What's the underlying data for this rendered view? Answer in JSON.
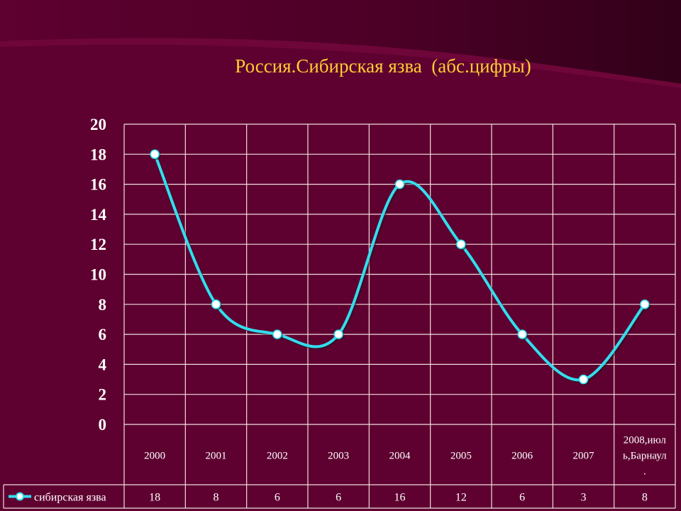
{
  "slide": {
    "title": "Россия.Сибирская язва  (абс.цифры)"
  },
  "colors": {
    "background": "#5e0030",
    "title": "#ffcc33",
    "grid": "#f2dede",
    "line": "#33ddee",
    "marker_fill": "#ffffff",
    "text": "#ffffff"
  },
  "chart_data": {
    "type": "line",
    "title": "",
    "xlabel": "",
    "ylabel": "",
    "categories": [
      "2000",
      "2001",
      "2002",
      "2003",
      "2004",
      "2005",
      "2006",
      "2007",
      "2008,июль,Барнаул"
    ],
    "category_lines": [
      [
        "2000"
      ],
      [
        "2001"
      ],
      [
        "2002"
      ],
      [
        "2003"
      ],
      [
        "2004"
      ],
      [
        "2005"
      ],
      [
        "2006"
      ],
      [
        "2007"
      ],
      [
        "2008,июл",
        "ь,Барнаул",
        "."
      ]
    ],
    "series": [
      {
        "name": "сибирская язва",
        "values": [
          18,
          8,
          6,
          6,
          16,
          12,
          6,
          3,
          8
        ]
      }
    ],
    "ylim": [
      0,
      20
    ],
    "yticks": [
      "0",
      "2",
      "4",
      "6",
      "8",
      "10",
      "12",
      "14",
      "16",
      "18",
      "20"
    ],
    "grid": true,
    "legend": "data table, bottom-left",
    "data_table": true
  }
}
